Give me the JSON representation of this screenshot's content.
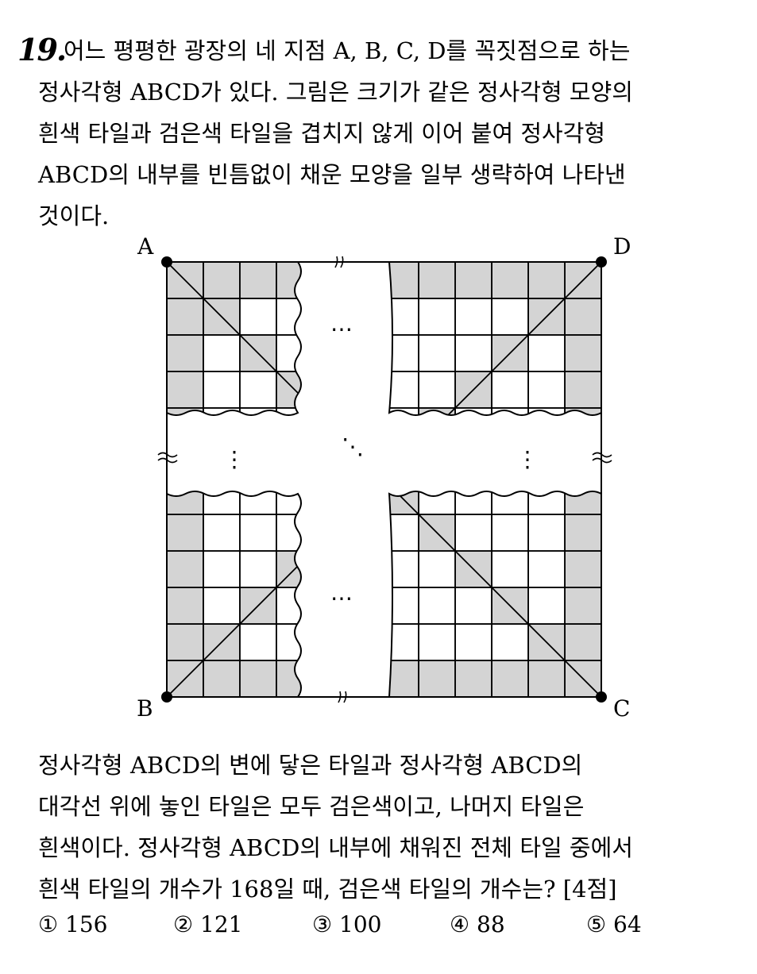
{
  "question": {
    "number": "19.",
    "intro_lines": [
      "어느 평평한 광장의 네 지점 A, B, C, D를 꼭짓점으로 하는",
      "정사각형 ABCD가 있다. 그림은 크기가 같은 정사각형 모양의",
      "흰색 타일과 검은색 타일을 겹치지 않게 이어 붙여 정사각형",
      "ABCD의 내부를 빈틈없이 채운 모양을 일부 생략하여 나타낸",
      "것이다."
    ],
    "condition_lines": [
      "정사각형 ABCD의 변에 닿은 타일과 정사각형 ABCD의",
      "대각선 위에 놓인 타일은 모두 검은색이고, 나머지 타일은",
      "흰색이다. 정사각형 ABCD의 내부에 채워진 전체 타일 중에서",
      "흰색 타일의 개수가 168일 때, 검은색 타일의 개수는? [4점]"
    ],
    "choices": [
      {
        "mark": "①",
        "value": "156"
      },
      {
        "mark": "②",
        "value": "121"
      },
      {
        "mark": "③",
        "value": "100"
      },
      {
        "mark": "④",
        "value": "88"
      },
      {
        "mark": "⑤",
        "value": "64"
      }
    ]
  },
  "figure": {
    "vertex_labels": {
      "a": "A",
      "b": "B",
      "c": "C",
      "d": "D"
    },
    "ellipsis_h": "⋯",
    "ellipsis_v": "⋮",
    "ellipsis_diag": "⋱",
    "break_mark": "≈",
    "colors": {
      "black_tile": "#d4d4d4",
      "white_tile": "#ffffff",
      "line": "#000000"
    }
  }
}
